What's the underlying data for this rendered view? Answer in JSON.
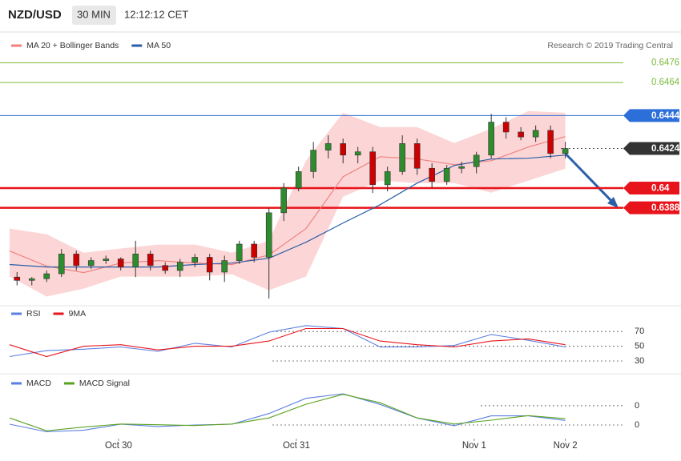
{
  "header": {
    "symbol": "NZD/USD",
    "interval": "30 MIN",
    "time": "12:12:12 CET"
  },
  "chart_data": [
    {
      "type": "candlestick",
      "credit": "Research © 2019 Trading Central",
      "xlim": [
        0,
        82.5
      ],
      "ylim": [
        0.6332,
        0.6484
      ],
      "up_color": "#2e8b2e",
      "down_color": "#cc0000",
      "x": [
        1,
        3,
        5,
        7,
        9,
        11,
        13,
        15,
        17,
        19,
        21,
        23,
        25,
        27,
        29,
        31,
        33,
        35,
        37,
        39,
        41,
        43,
        45,
        47,
        49,
        51,
        53,
        55,
        57,
        59,
        61,
        63,
        65,
        67,
        69,
        71,
        73,
        75
      ],
      "open": [
        0.6346,
        0.6344,
        0.6345,
        0.6348,
        0.636,
        0.6353,
        0.6356,
        0.6357,
        0.6352,
        0.636,
        0.6353,
        0.635,
        0.6355,
        0.6358,
        0.6349,
        0.6356,
        0.6366,
        0.6358,
        0.6385,
        0.64,
        0.641,
        0.6423,
        0.6427,
        0.642,
        0.6422,
        0.6402,
        0.641,
        0.6427,
        0.6412,
        0.6404,
        0.6412,
        0.6413,
        0.642,
        0.644,
        0.6434,
        0.6431,
        0.6435,
        0.6421
      ],
      "high": [
        0.6349,
        0.6346,
        0.635,
        0.6363,
        0.6362,
        0.6358,
        0.6359,
        0.6358,
        0.6368,
        0.6362,
        0.6355,
        0.6357,
        0.636,
        0.636,
        0.6359,
        0.6368,
        0.6368,
        0.6388,
        0.6403,
        0.6413,
        0.6428,
        0.6432,
        0.643,
        0.6425,
        0.6425,
        0.6413,
        0.6432,
        0.643,
        0.6415,
        0.6414,
        0.6416,
        0.6422,
        0.6445,
        0.6443,
        0.6437,
        0.6438,
        0.6438,
        0.6428
      ],
      "low": [
        0.6341,
        0.6341,
        0.6343,
        0.6346,
        0.635,
        0.6351,
        0.6354,
        0.635,
        0.6346,
        0.635,
        0.6348,
        0.6346,
        0.6352,
        0.6344,
        0.6343,
        0.6354,
        0.6355,
        0.6333,
        0.638,
        0.6398,
        0.6406,
        0.6418,
        0.6415,
        0.6415,
        0.6397,
        0.6398,
        0.6408,
        0.6408,
        0.64,
        0.6402,
        0.6409,
        0.6409,
        0.6418,
        0.643,
        0.6429,
        0.6428,
        0.6418,
        0.6418
      ],
      "close": [
        0.6344,
        0.6345,
        0.6348,
        0.636,
        0.6353,
        0.6356,
        0.6357,
        0.6352,
        0.636,
        0.6353,
        0.635,
        0.6355,
        0.6358,
        0.6349,
        0.6356,
        0.6366,
        0.6358,
        0.6385,
        0.64,
        0.641,
        0.6423,
        0.6427,
        0.642,
        0.6422,
        0.6402,
        0.641,
        0.6427,
        0.6412,
        0.6404,
        0.6412,
        0.6413,
        0.642,
        0.644,
        0.6434,
        0.6431,
        0.6435,
        0.6421,
        0.6424
      ],
      "series": [
        {
          "name": "MA 20 + Bollinger Bands",
          "color": "#f08080",
          "band_color": "#fcd6d6",
          "x": [
            0,
            5,
            10,
            15,
            20,
            25,
            30,
            35,
            40,
            45,
            50,
            55,
            60,
            65,
            70,
            75
          ],
          "values": [
            0.63618,
            0.63526,
            0.63487,
            0.63545,
            0.6356,
            0.63545,
            0.63536,
            0.63594,
            0.63754,
            0.64069,
            0.6419,
            0.64176,
            0.64142,
            0.64166,
            0.64249,
            0.64312
          ],
          "upper": [
            0.63754,
            0.6372,
            0.63608,
            0.63633,
            0.63657,
            0.63657,
            0.63608,
            0.63681,
            0.64166,
            0.64457,
            0.6437,
            0.6437,
            0.64273,
            0.6436,
            0.64467,
            0.64457
          ],
          "lower": [
            0.63463,
            0.63342,
            0.6339,
            0.63463,
            0.63463,
            0.63463,
            0.63477,
            0.6338,
            0.63463,
            0.63948,
            0.64045,
            0.6403,
            0.6403,
            0.63972,
            0.64045,
            0.64118
          ]
        },
        {
          "name": "MA 50",
          "color": "#2b5ea7",
          "x": [
            0,
            5,
            10,
            15,
            20,
            25,
            30,
            35,
            40,
            45,
            50,
            55,
            60,
            65,
            70,
            75
          ],
          "values": [
            0.63536,
            0.63521,
            0.63521,
            0.63521,
            0.63521,
            0.63536,
            0.63545,
            0.63574,
            0.63671,
            0.63788,
            0.63899,
            0.6403,
            0.64137,
            0.64176,
            0.64181,
            0.642
          ]
        }
      ],
      "levels": [
        {
          "value": 0.6476,
          "color": "#7cba3c",
          "style": "text"
        },
        {
          "value": 0.6464,
          "color": "#7cba3c",
          "style": "text"
        },
        {
          "value": 0.6444,
          "color": "#2d6fd8",
          "style": "tag"
        },
        {
          "value": 0.6424,
          "color": "#333333",
          "style": "dotted-tag"
        },
        {
          "value": 0.64,
          "color": "#e8141b",
          "style": "thick-tag"
        },
        {
          "value": 0.6388,
          "color": "#e8141b",
          "style": "thick-tag"
        }
      ]
    },
    {
      "type": "line",
      "xlim": [
        0,
        82.5
      ],
      "ylim": [
        18,
        80
      ],
      "yticks": [
        30,
        50,
        70
      ],
      "grid": true,
      "series": [
        {
          "name": "RSI",
          "color": "#5b7fe0",
          "x": [
            0,
            5,
            10,
            15,
            20,
            25,
            30,
            35,
            40,
            45,
            50,
            55,
            60,
            65,
            70,
            75
          ],
          "values": [
            36,
            44,
            46,
            49,
            43,
            54,
            49,
            69,
            78,
            74,
            49,
            49,
            51,
            66,
            58,
            49
          ]
        },
        {
          "name": "9MA",
          "color": "#e8141b",
          "x": [
            0,
            5,
            10,
            15,
            20,
            25,
            30,
            35,
            40,
            45,
            50,
            55,
            60,
            65,
            70,
            75
          ],
          "values": [
            52,
            36,
            50,
            52,
            45,
            50,
            50,
            57,
            74,
            74,
            57,
            52,
            49,
            57,
            60,
            52
          ]
        }
      ]
    },
    {
      "type": "line",
      "xlim": [
        0,
        82.5
      ],
      "ylim": [
        -1.79,
        6.21
      ],
      "yticks": [
        0
      ],
      "y2lim": [
        -4.32,
        3.68
      ],
      "y2ticks": [
        0
      ],
      "grid": true,
      "xticks": [
        {
          "value": 14.7,
          "label": "Oct 30"
        },
        {
          "value": 38.7,
          "label": "Oct 31"
        },
        {
          "value": 62.7,
          "label": "Nov 1"
        },
        {
          "value": 75,
          "label": "Nov 2"
        }
      ],
      "series": [
        {
          "name": "MACD",
          "color": "#5b7fe0",
          "x": [
            0,
            5,
            10,
            15,
            20,
            25,
            30,
            35,
            40,
            45,
            50,
            55,
            60,
            65,
            70,
            75
          ],
          "values": [
            0.1,
            -0.9,
            -0.7,
            0.1,
            -0.2,
            0,
            0.1,
            1.5,
            3.5,
            4.1,
            2.7,
            0.9,
            -0.1,
            1.2,
            1.2,
            0.6
          ]
        },
        {
          "name": "MACD Signal",
          "color": "#5aa21e",
          "axis": "y2",
          "x": [
            0,
            5,
            10,
            15,
            20,
            25,
            30,
            35,
            40,
            45,
            50,
            55,
            60,
            65,
            70,
            75
          ],
          "values": [
            -1.6,
            -3.3,
            -2.8,
            -2.4,
            -2.5,
            -2.6,
            -2.4,
            -1.6,
            0.2,
            1.5,
            0.4,
            -1.6,
            -2.4,
            -1.9,
            -1.3,
            -1.7
          ]
        }
      ]
    }
  ]
}
